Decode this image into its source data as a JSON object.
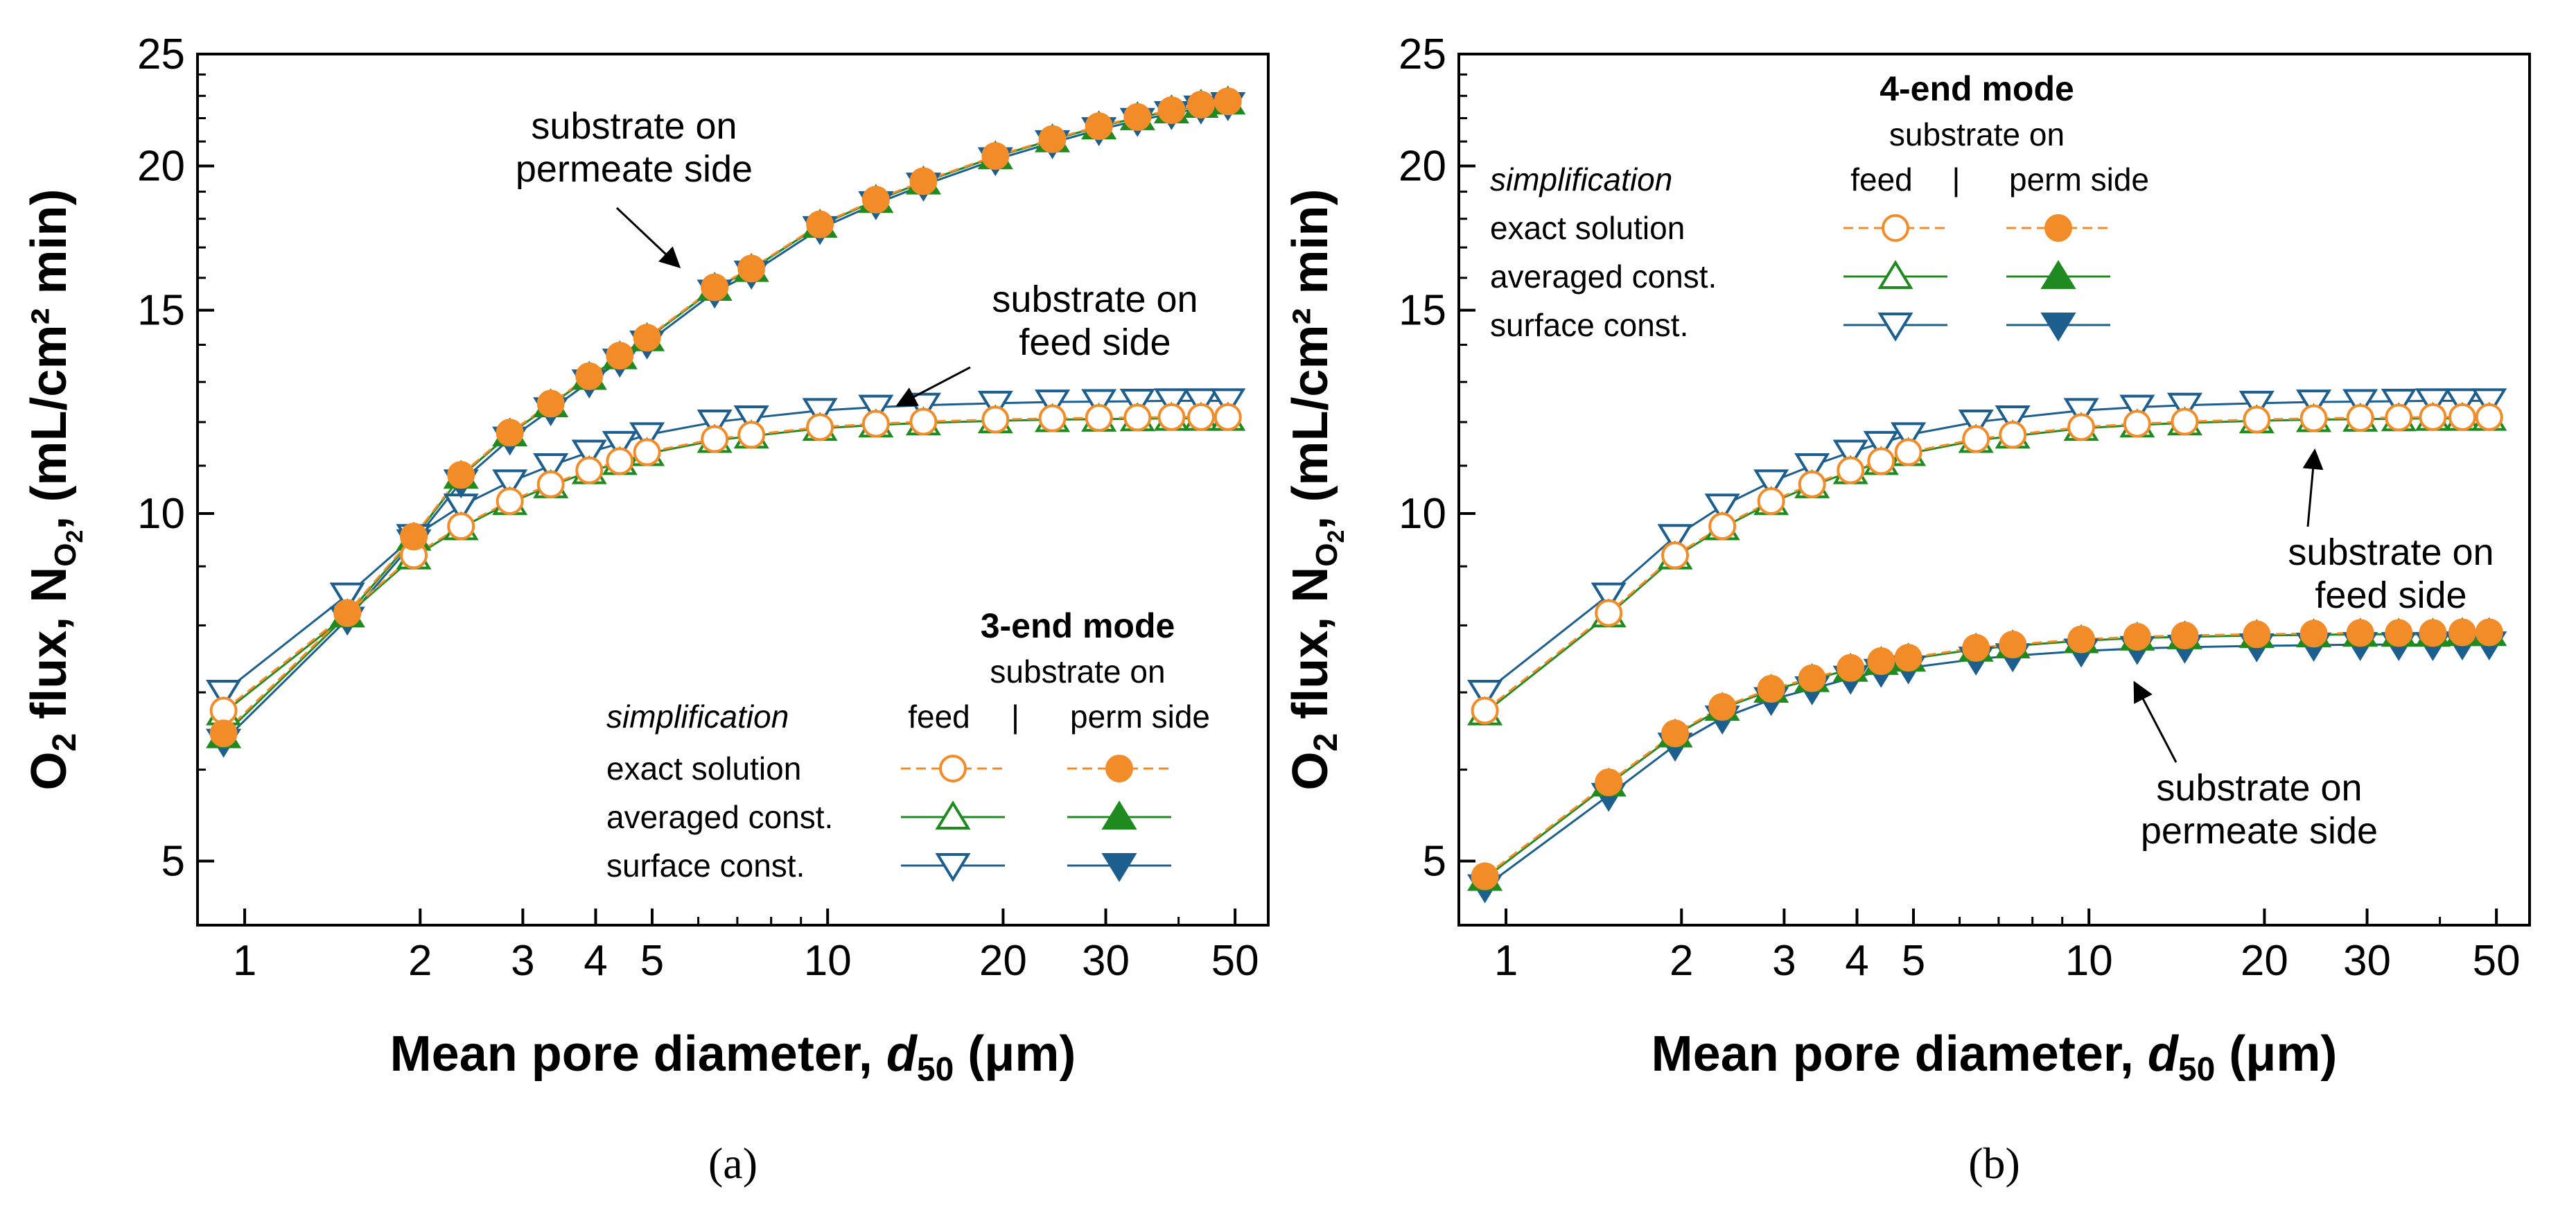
{
  "chart_data": [
    {
      "type": "line",
      "panel_label": "(a)",
      "xlabel_main": "Mean pore diameter, ",
      "xlabel_var": "d",
      "xlabel_sub": "50",
      "xlabel_unit": " (μm)",
      "ylabel_main": "O",
      "ylabel_sub1": "2",
      "ylabel_mid": " flux, N",
      "ylabel_sub2": "O",
      "ylabel_sub3": "2",
      "ylabel_unit": ", (mL/cm² min)",
      "x_scale": "log",
      "y_scale": "log",
      "xlim": [
        0.83,
        57
      ],
      "ylim": [
        4.4,
        25
      ],
      "x_ticks": [
        1,
        2,
        3,
        4,
        5,
        10,
        20,
        30,
        50
      ],
      "x_tick_labels": [
        "1",
        "2",
        "3",
        "4",
        "5",
        "10",
        "20",
        "30",
        "50"
      ],
      "y_ticks": [
        5,
        10,
        15,
        20,
        25
      ],
      "y_tick_labels": [
        "5",
        "10",
        "15",
        "20",
        "25"
      ],
      "annotations": [
        {
          "lines": [
            "substrate on",
            "permeate side"
          ],
          "arrow_to": [
            4.6,
            14.2
          ]
        },
        {
          "lines": [
            "substrate on",
            "feed side"
          ],
          "arrow_to": [
            10.5,
            12.2
          ]
        }
      ],
      "legend": {
        "title": "3-end mode",
        "subtitle": "substrate on",
        "col_feed": "feed",
        "col_sep": "|",
        "col_perm": "perm side",
        "header": "simplification",
        "rows": [
          "exact solution",
          "averaged const.",
          "surface const."
        ]
      },
      "x": [
        0.92,
        1.5,
        1.95,
        2.35,
        2.85,
        3.35,
        3.9,
        4.4,
        4.9,
        6.4,
        7.4,
        9.7,
        12.1,
        14.6,
        19.4,
        24.3,
        29.2,
        34,
        38.9,
        43.7,
        48.6
      ],
      "series": [
        {
          "name": "feed side, exact solution",
          "group": "feed",
          "method": "exact",
          "color": "#f28c28",
          "values": [
            6.75,
            8.2,
            9.2,
            9.75,
            10.25,
            10.6,
            10.9,
            11.1,
            11.3,
            11.6,
            11.7,
            11.88,
            11.96,
            12.01,
            12.06,
            12.09,
            12.1,
            12.11,
            12.12,
            12.12,
            12.12
          ]
        },
        {
          "name": "feed side, averaged const.",
          "group": "feed",
          "method": "averaged",
          "color": "#1f8a1f",
          "values": [
            6.72,
            8.17,
            9.17,
            9.72,
            10.22,
            10.57,
            10.87,
            11.07,
            11.27,
            11.57,
            11.67,
            11.85,
            11.93,
            11.98,
            12.03,
            12.06,
            12.07,
            12.08,
            12.09,
            12.09,
            12.09
          ]
        },
        {
          "name": "feed side, surface const.",
          "group": "feed",
          "method": "surface",
          "color": "#1c5f8e",
          "values": [
            7.0,
            8.5,
            9.55,
            10.15,
            10.65,
            11.0,
            11.3,
            11.5,
            11.7,
            12.0,
            12.1,
            12.28,
            12.36,
            12.41,
            12.46,
            12.49,
            12.5,
            12.51,
            12.52,
            12.52,
            12.52
          ]
        },
        {
          "name": "permeate side, exact solution",
          "group": "perm",
          "method": "exact",
          "color": "#f28c28",
          "values": [
            6.45,
            8.2,
            9.55,
            10.8,
            11.75,
            12.45,
            13.15,
            13.7,
            14.2,
            15.7,
            16.3,
            17.8,
            18.7,
            19.4,
            20.4,
            21.1,
            21.65,
            22.05,
            22.35,
            22.6,
            22.75
          ]
        },
        {
          "name": "permeate side, averaged const.",
          "group": "perm",
          "method": "averaged",
          "color": "#1f8a1f",
          "values": [
            6.42,
            8.17,
            9.52,
            10.77,
            11.72,
            12.42,
            13.12,
            13.67,
            14.17,
            15.67,
            16.27,
            17.77,
            18.67,
            19.37,
            20.37,
            21.07,
            21.62,
            22.02,
            22.32,
            22.57,
            22.72
          ]
        },
        {
          "name": "permeate side, surface const.",
          "group": "perm",
          "method": "surface",
          "color": "#1c5f8e",
          "values": [
            6.35,
            8.1,
            9.45,
            10.65,
            11.6,
            12.3,
            13.0,
            13.55,
            14.05,
            15.55,
            16.15,
            17.65,
            18.55,
            19.25,
            20.25,
            20.95,
            21.5,
            21.9,
            22.2,
            22.45,
            22.6
          ]
        }
      ]
    },
    {
      "type": "line",
      "panel_label": "(b)",
      "xlabel_main": "Mean pore diameter, ",
      "xlabel_var": "d",
      "xlabel_sub": "50",
      "xlabel_unit": " (μm)",
      "ylabel_main": "O",
      "ylabel_sub1": "2",
      "ylabel_mid": " flux, N",
      "ylabel_sub2": "O",
      "ylabel_sub3": "2",
      "ylabel_unit": ", (mL/cm² min)",
      "x_scale": "log",
      "y_scale": "log",
      "xlim": [
        0.83,
        57
      ],
      "ylim": [
        4.4,
        25
      ],
      "x_ticks": [
        1,
        2,
        3,
        4,
        5,
        10,
        20,
        30,
        50
      ],
      "x_tick_labels": [
        "1",
        "2",
        "3",
        "4",
        "5",
        "10",
        "20",
        "30",
        "50"
      ],
      "y_ticks": [
        5,
        10,
        15,
        20,
        25
      ],
      "y_tick_labels": [
        "5",
        "10",
        "15",
        "20",
        "25"
      ],
      "annotations": [
        {
          "lines": [
            "substrate on",
            "feed side"
          ],
          "arrow_to": [
            20,
            12.1
          ]
        },
        {
          "lines": [
            "substrate on",
            "permeate side"
          ],
          "arrow_to": [
            9.5,
            7.45
          ]
        }
      ],
      "legend": {
        "title": "4-end mode",
        "subtitle": "substrate on",
        "col_feed": "feed",
        "col_sep": "|",
        "col_perm": "perm side",
        "header": "simplification",
        "rows": [
          "exact solution",
          "averaged const.",
          "surface const."
        ]
      },
      "x": [
        0.92,
        1.5,
        1.95,
        2.35,
        2.85,
        3.35,
        3.9,
        4.4,
        4.9,
        6.4,
        7.4,
        9.7,
        12.1,
        14.6,
        19.4,
        24.3,
        29.2,
        34,
        38.9,
        43.7,
        48.6
      ],
      "series": [
        {
          "name": "feed side, exact solution",
          "group": "feed",
          "method": "exact",
          "color": "#f28c28",
          "values": [
            6.75,
            8.2,
            9.2,
            9.75,
            10.25,
            10.6,
            10.9,
            11.1,
            11.3,
            11.6,
            11.7,
            11.88,
            11.96,
            12.01,
            12.06,
            12.09,
            12.1,
            12.11,
            12.12,
            12.12,
            12.12
          ]
        },
        {
          "name": "feed side, averaged const.",
          "group": "feed",
          "method": "averaged",
          "color": "#1f8a1f",
          "values": [
            6.72,
            8.17,
            9.17,
            9.72,
            10.22,
            10.57,
            10.87,
            11.07,
            11.27,
            11.57,
            11.67,
            11.85,
            11.93,
            11.98,
            12.03,
            12.06,
            12.07,
            12.08,
            12.09,
            12.09,
            12.09
          ]
        },
        {
          "name": "feed side, surface const.",
          "group": "feed",
          "method": "surface",
          "color": "#1c5f8e",
          "values": [
            7.0,
            8.5,
            9.55,
            10.15,
            10.65,
            11.0,
            11.3,
            11.5,
            11.7,
            12.0,
            12.1,
            12.28,
            12.36,
            12.41,
            12.46,
            12.49,
            12.5,
            12.51,
            12.52,
            12.52,
            12.52
          ]
        },
        {
          "name": "permeate side, exact solution",
          "group": "perm",
          "method": "exact",
          "color": "#f28c28",
          "values": [
            4.85,
            5.85,
            6.45,
            6.8,
            7.05,
            7.2,
            7.35,
            7.45,
            7.5,
            7.65,
            7.7,
            7.78,
            7.82,
            7.84,
            7.86,
            7.87,
            7.88,
            7.88,
            7.88,
            7.89,
            7.89
          ]
        },
        {
          "name": "permeate side, averaged const.",
          "group": "perm",
          "method": "averaged",
          "color": "#1f8a1f",
          "values": [
            4.83,
            5.83,
            6.43,
            6.78,
            7.03,
            7.18,
            7.33,
            7.43,
            7.48,
            7.63,
            7.68,
            7.76,
            7.8,
            7.82,
            7.84,
            7.85,
            7.86,
            7.86,
            7.86,
            7.87,
            7.87
          ]
        },
        {
          "name": "permeate side, surface const.",
          "group": "perm",
          "method": "surface",
          "color": "#1c5f8e",
          "values": [
            4.75,
            5.7,
            6.3,
            6.65,
            6.9,
            7.05,
            7.2,
            7.3,
            7.35,
            7.48,
            7.53,
            7.6,
            7.64,
            7.66,
            7.68,
            7.69,
            7.7,
            7.7,
            7.7,
            7.71,
            7.71
          ]
        }
      ]
    }
  ]
}
